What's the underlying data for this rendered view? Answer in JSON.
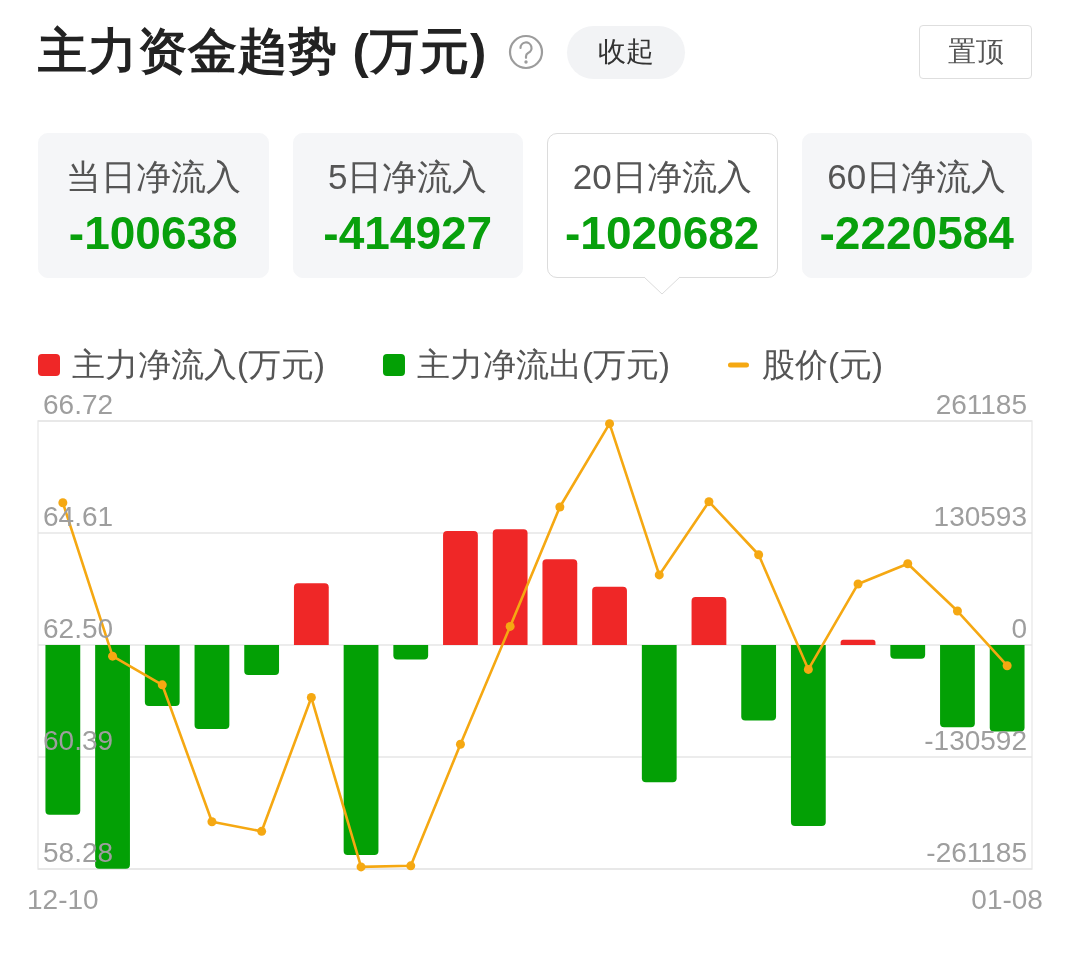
{
  "chart_data": [
    {
      "type": "other",
      "title": "主力资金趋势 (万元)",
      "annotations": [
        "收起",
        "置顶"
      ],
      "categories": [
        "当日净流入",
        "5日净流入",
        "20日净流入",
        "60日净流入"
      ],
      "values": [
        -100638,
        -414927,
        -1020682,
        -2220584
      ],
      "data_labels": true
    },
    {
      "type": "bar",
      "categories": [
        "12-10",
        null,
        null,
        null,
        null,
        null,
        null,
        null,
        null,
        null,
        null,
        null,
        null,
        null,
        null,
        null,
        null,
        null,
        null,
        "01-08"
      ],
      "stacked": true,
      "series": [
        {
          "name": "主力净流入(万元)",
          "color": "#ef2727",
          "axis": "y2",
          "values": [
            null,
            null,
            null,
            null,
            null,
            72000,
            null,
            null,
            133000,
            135000,
            100000,
            68000,
            null,
            56000,
            null,
            null,
            6000,
            null,
            null,
            null
          ]
        },
        {
          "name": "主力净流出(万元)",
          "color": "#03a005",
          "axis": "y2",
          "values": [
            -198000,
            -261000,
            -71000,
            -98000,
            -35000,
            null,
            -245000,
            -17000,
            null,
            null,
            null,
            null,
            -160000,
            null,
            -88000,
            -211000,
            null,
            -16000,
            -96000,
            -101000
          ]
        },
        {
          "name": "股价(元)",
          "type": "line",
          "color": "#f5a812",
          "axis": "y",
          "values": [
            65.18,
            62.29,
            61.75,
            59.17,
            58.99,
            61.51,
            58.32,
            58.34,
            60.63,
            62.85,
            65.1,
            66.67,
            63.82,
            65.2,
            64.2,
            62.04,
            63.65,
            64.03,
            63.14,
            62.11
          ]
        }
      ],
      "ylim": [
        58.28,
        66.72
      ],
      "yticks": [
        58.28,
        60.39,
        {
          "value": 62.5,
          "label": "62.50"
        },
        64.61,
        66.72
      ],
      "y2lim": [
        -261185,
        261185
      ],
      "y2ticks": [
        -261185,
        -130592,
        0,
        130593,
        261185
      ],
      "grid": "y",
      "legend": "top",
      "marker": "circle",
      "line_style": "solid"
    }
  ]
}
